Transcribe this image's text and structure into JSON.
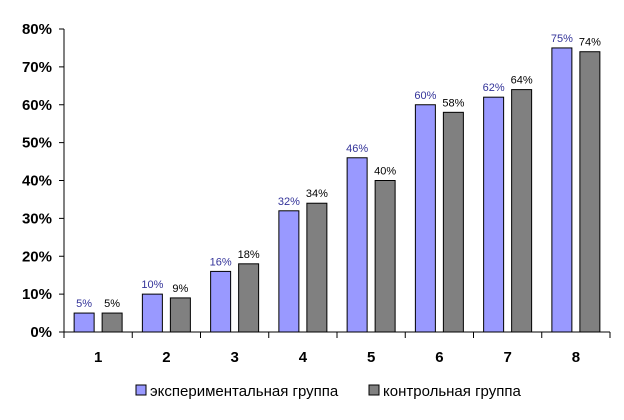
{
  "chart_data": {
    "type": "bar",
    "categories": [
      "1",
      "2",
      "3",
      "4",
      "5",
      "6",
      "7",
      "8"
    ],
    "series": [
      {
        "name": "экспериментальная группа",
        "values": [
          5,
          10,
          16,
          32,
          46,
          60,
          62,
          75
        ],
        "labels": [
          "5%",
          "10%",
          "16%",
          "32%",
          "46%",
          "60%",
          "62%",
          "75%"
        ],
        "color": "#9999FF",
        "label_color": "#333399"
      },
      {
        "name": "контрольная группа",
        "values": [
          5,
          9,
          18,
          34,
          40,
          58,
          64,
          74
        ],
        "labels": [
          "5%",
          "9%",
          "18%",
          "34%",
          "40%",
          "58%",
          "64%",
          "74%"
        ],
        "color": "#808080",
        "label_color": "#000000"
      }
    ],
    "ylim": [
      0,
      80
    ],
    "yticks": [
      0,
      10,
      20,
      30,
      40,
      50,
      60,
      70,
      80
    ],
    "ytick_labels": [
      "0%",
      "10%",
      "20%",
      "30%",
      "40%",
      "50%",
      "60%",
      "70%",
      "80%"
    ],
    "grid": false,
    "legend_position": "bottom"
  }
}
